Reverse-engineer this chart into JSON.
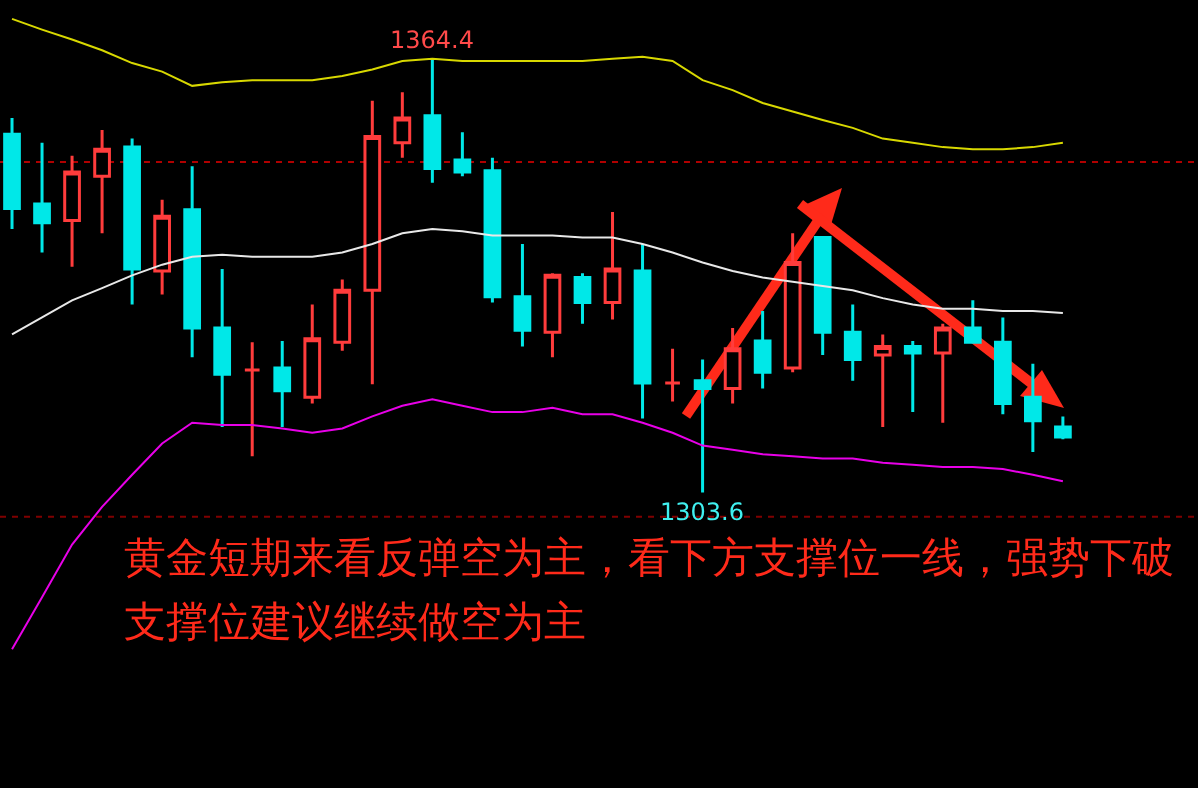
{
  "chart_data": {
    "type": "candlestick",
    "categories": [
      null,
      null,
      null,
      null,
      null,
      null,
      null,
      null,
      null,
      null,
      null,
      null,
      null,
      null,
      null,
      null,
      null,
      null,
      null,
      null,
      null,
      null,
      null,
      null,
      null,
      null,
      null,
      null,
      null,
      null,
      null,
      null,
      null,
      null,
      null,
      null
    ],
    "ohlc": [
      [
        1353.9,
        1356.2,
        1340.6,
        1343.5
      ],
      [
        1344.1,
        1352.7,
        1337.3,
        1341.5
      ],
      [
        1341.8,
        1350.9,
        1335.3,
        1348.6
      ],
      [
        1348.0,
        1354.5,
        1340.0,
        1351.8
      ],
      [
        1352.1,
        1353.3,
        1330.0,
        1335.0
      ],
      [
        1334.7,
        1344.7,
        1331.4,
        1342.4
      ],
      [
        1343.3,
        1349.4,
        1322.6,
        1326.7
      ],
      [
        1326.7,
        1335.0,
        1312.8,
        1320.2
      ],
      [
        1320.8,
        1324.7,
        1308.7,
        1320.8
      ],
      [
        1321.1,
        1324.9,
        1312.8,
        1317.9
      ],
      [
        1317.0,
        1330.0,
        1316.1,
        1325.2
      ],
      [
        1324.7,
        1333.5,
        1323.5,
        1332.0
      ],
      [
        1332.0,
        1358.6,
        1318.8,
        1353.6
      ],
      [
        1352.7,
        1359.8,
        1350.6,
        1356.2
      ],
      [
        1356.5,
        1364.4,
        1347.1,
        1349.1
      ],
      [
        1350.3,
        1354.2,
        1348.0,
        1348.6
      ],
      [
        1348.8,
        1350.6,
        1330.3,
        1331.1
      ],
      [
        1331.1,
        1338.5,
        1324.1,
        1326.4
      ],
      [
        1326.1,
        1334.4,
        1322.6,
        1334.1
      ],
      [
        1333.8,
        1334.4,
        1327.3,
        1330.3
      ],
      [
        1330.3,
        1343.0,
        1327.9,
        1335.0
      ],
      [
        1334.7,
        1338.5,
        1314.0,
        1319.0
      ],
      [
        1319.0,
        1323.8,
        1316.4,
        1319.0
      ],
      [
        1319.3,
        1322.3,
        1303.6,
        1318.2
      ],
      [
        1318.2,
        1326.7,
        1316.1,
        1323.8
      ],
      [
        1324.9,
        1329.1,
        1318.2,
        1320.5
      ],
      [
        1321.1,
        1340.0,
        1320.5,
        1335.9
      ],
      [
        1339.4,
        1339.4,
        1322.9,
        1326.1
      ],
      [
        1326.1,
        1330.0,
        1319.3,
        1322.3
      ],
      [
        1322.9,
        1325.8,
        1312.8,
        1324.1
      ],
      [
        1324.1,
        1324.9,
        1314.9,
        1323.2
      ],
      [
        1323.2,
        1327.3,
        1313.4,
        1326.7
      ],
      [
        1326.7,
        1330.6,
        1324.7,
        1324.7
      ],
      [
        1324.7,
        1328.2,
        1314.6,
        1316.1
      ],
      [
        1317.0,
        1321.7,
        1309.3,
        1313.7
      ],
      [
        1312.8,
        1314.3,
        1311.1,
        1311.4
      ]
    ],
    "colors": [
      "#00e8e8",
      "#00e8e8",
      "#ff3c3c",
      "#ff3c3c",
      "#00e8e8",
      "#ff3c3c",
      "#00e8e8",
      "#00e8e8",
      "#ff3c3c",
      "#00e8e8",
      "#ff3c3c",
      "#ff3c3c",
      "#ff3c3c",
      "#ff3c3c",
      "#00e8e8",
      "#00e8e8",
      "#00e8e8",
      "#00e8e8",
      "#ff3c3c",
      "#00e8e8",
      "#ff3c3c",
      "#00e8e8",
      "#ff3c3c",
      "#00e8e8",
      "#ff3c3c",
      "#00e8e8",
      "#ff3c3c",
      "#00e8e8",
      "#00e8e8",
      "#ff3c3c",
      "#00e8e8",
      "#ff3c3c",
      "#00e8e8",
      "#00e8e8",
      "#00e8e8",
      "#00e8e8"
    ],
    "series": [
      {
        "type": "line",
        "color": "#d8d800",
        "values": [
          1370.1,
          1368.6,
          1367.2,
          1365.7,
          1363.9,
          1362.7,
          1360.7,
          1361.2,
          1361.5,
          1361.5,
          1361.5,
          1362.1,
          1363.0,
          1364.2,
          1364.5,
          1364.2,
          1364.2,
          1364.2,
          1364.2,
          1364.2,
          1364.5,
          1364.8,
          1364.2,
          1361.5,
          1360.1,
          1358.3,
          1357.1,
          1355.9,
          1354.8,
          1353.3,
          1352.7,
          1352.1,
          1351.8,
          1351.8,
          1352.1,
          1352.7
        ]
      },
      {
        "type": "line",
        "color": "#e8e8e8",
        "values": [
          1325.8,
          1328.2,
          1330.6,
          1332.3,
          1334.1,
          1335.6,
          1336.7,
          1337.0,
          1336.7,
          1336.7,
          1336.7,
          1337.3,
          1338.5,
          1340.0,
          1340.6,
          1340.3,
          1339.7,
          1339.7,
          1339.7,
          1339.4,
          1339.4,
          1338.5,
          1337.3,
          1335.9,
          1334.7,
          1333.8,
          1333.2,
          1332.6,
          1332.0,
          1330.9,
          1330.0,
          1329.4,
          1329.4,
          1329.1,
          1329.1,
          1328.8
        ]
      },
      {
        "type": "line",
        "color": "#e800e8",
        "values": [
          1281.6,
          1288.9,
          1296.3,
          1301.6,
          1306.1,
          1310.5,
          1313.4,
          1313.1,
          1313.1,
          1312.6,
          1312.0,
          1312.6,
          1314.3,
          1315.8,
          1316.7,
          1315.8,
          1314.9,
          1314.9,
          1315.5,
          1314.6,
          1314.6,
          1313.4,
          1312.0,
          1310.2,
          1309.6,
          1309.0,
          1308.7,
          1308.4,
          1308.4,
          1307.8,
          1307.5,
          1307.2,
          1307.2,
          1306.9,
          1306.1,
          1305.2
        ]
      }
    ],
    "ref_lines": [
      {
        "axis": "y",
        "value": 1350.0,
        "color": "#b00000",
        "line_style": "dotted"
      },
      {
        "axis": "y",
        "value": 1300.2,
        "color": "#800000",
        "line_style": "dotted"
      }
    ],
    "annotations": [
      {
        "text": "1364.4",
        "y": 1364.4
      },
      {
        "text": "1303.6",
        "y": 1303.6
      },
      "黄金短期来看反弹空为主，看下方支撑位一线，强势下破支撑位建议继续做空为主"
    ]
  }
}
